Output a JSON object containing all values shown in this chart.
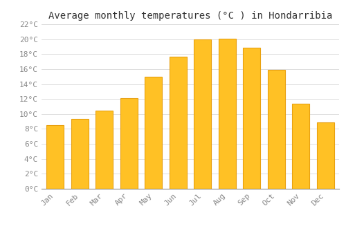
{
  "title": "Average monthly temperatures (°C ) in Hondarribia",
  "months": [
    "Jan",
    "Feb",
    "Mar",
    "Apr",
    "May",
    "Jun",
    "Jul",
    "Aug",
    "Sep",
    "Oct",
    "Nov",
    "Dec"
  ],
  "temperatures": [
    8.5,
    9.3,
    10.4,
    12.1,
    15.0,
    17.7,
    20.0,
    20.1,
    18.9,
    15.9,
    11.4,
    8.9
  ],
  "bar_color": "#FFC125",
  "bar_edge_color": "#E8A010",
  "ylim": [
    0,
    22
  ],
  "ytick_step": 2,
  "background_color": "#FFFFFF",
  "grid_color": "#D8D8D8",
  "title_fontsize": 10,
  "tick_fontsize": 8,
  "tick_color": "#888888",
  "font_family": "monospace"
}
